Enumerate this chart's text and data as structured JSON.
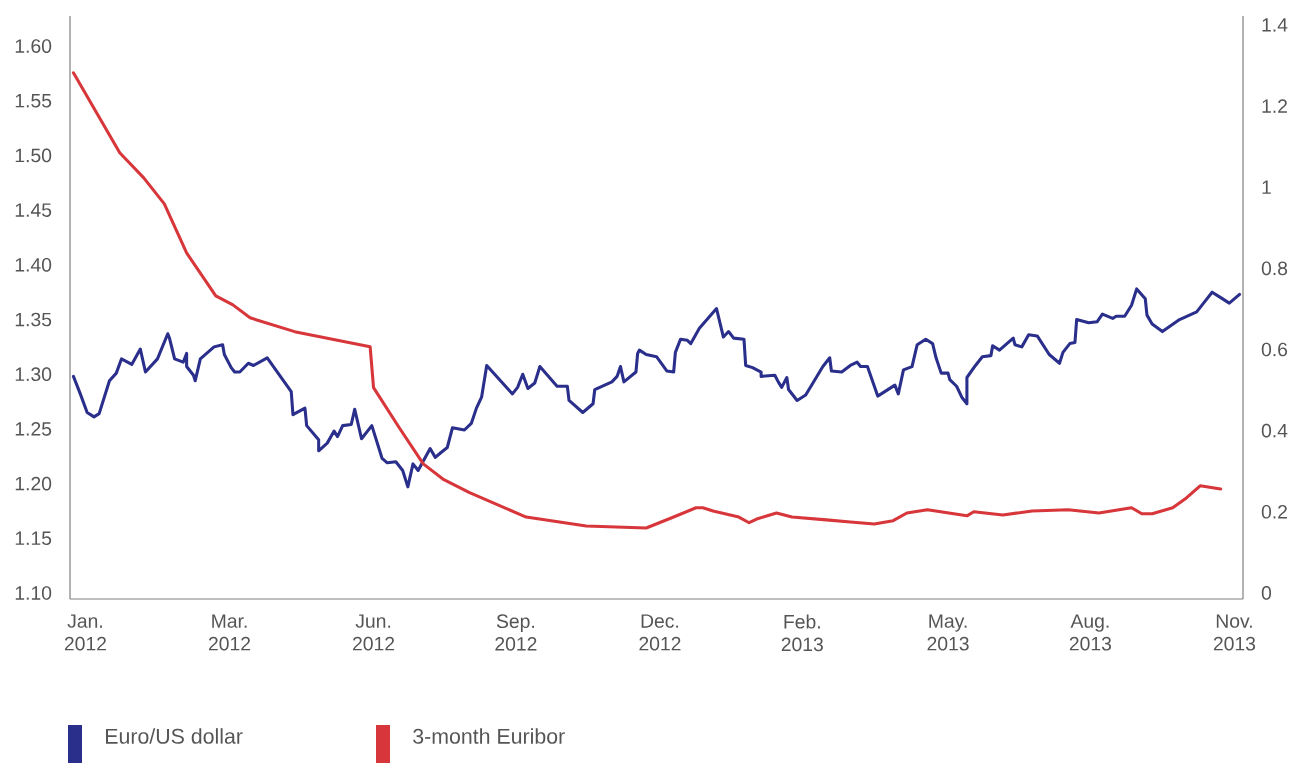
{
  "chart_data": {
    "type": "line",
    "xlim": [
      "2011-12-23",
      "2013-11-06"
    ],
    "xticks": [
      {
        "value": "2012-01-01",
        "label": "Jan. 2012"
      },
      {
        "value": "2012-03-25",
        "label": "Mar. 2012"
      },
      {
        "value": "2012-06-17",
        "label": "Jun. 2012"
      },
      {
        "value": "2012-09-08",
        "label": "Sep. 2012"
      },
      {
        "value": "2012-12-01",
        "label": "Dec. 2012"
      },
      {
        "value": "2013-02-22",
        "label": "Feb. 2013"
      },
      {
        "value": "2013-05-18",
        "label": "May. 2013"
      },
      {
        "value": "2013-08-09",
        "label": "Aug. 2013"
      },
      {
        "value": "2013-11-01",
        "label": "Nov. 2013"
      }
    ],
    "ylim": [
      1.0945,
      1.6275
    ],
    "yticks": [
      {
        "value": 1.1,
        "label": "1.10"
      },
      {
        "value": 1.15,
        "label": "1.15"
      },
      {
        "value": 1.2,
        "label": "1.20"
      },
      {
        "value": 1.25,
        "label": "1.25"
      },
      {
        "value": 1.3,
        "label": "1.30"
      },
      {
        "value": 1.35,
        "label": "1.35"
      },
      {
        "value": 1.4,
        "label": "1.40"
      },
      {
        "value": 1.45,
        "label": "1.45"
      },
      {
        "value": 1.5,
        "label": "1.50"
      },
      {
        "value": 1.55,
        "label": "1.55"
      },
      {
        "value": 1.6,
        "label": "1.60"
      }
    ],
    "y2lim": [
      -0.015,
      1.422
    ],
    "y2ticks": [
      0,
      0.2,
      0.4,
      0.6,
      0.8,
      1,
      1.2,
      1.4
    ],
    "legend": "bottom",
    "series": [
      {
        "name": "Euro/US dollar",
        "color": "#2b2f8c",
        "x": [
          "2011-12-25",
          "2011-12-29",
          "2012-01-02",
          "2012-01-06",
          "2012-01-09",
          "2012-01-15",
          "2012-01-19",
          "2012-01-22",
          "2012-01-28",
          "2012-02-02",
          "2012-02-05",
          "2012-02-12",
          "2012-02-18",
          "2012-02-19",
          "2012-02-22",
          "2012-02-27",
          "2012-02-29",
          "2012-02-29",
          "2012-03-04",
          "2012-03-05",
          "2012-03-08",
          "2012-03-16",
          "2012-03-21",
          "2012-03-22",
          "2012-03-26",
          "2012-03-28",
          "2012-03-31",
          "2012-04-05",
          "2012-04-08",
          "2012-04-16",
          "2012-04-30",
          "2012-05-01",
          "2012-05-08",
          "2012-05-09",
          "2012-05-16",
          "2012-05-16",
          "2012-05-21",
          "2012-05-25",
          "2012-05-27",
          "2012-05-30",
          "2012-06-04",
          "2012-06-06",
          "2012-06-10",
          "2012-06-16",
          "2012-06-22",
          "2012-06-25",
          "2012-06-30",
          "2012-07-04",
          "2012-07-07",
          "2012-07-10",
          "2012-07-13",
          "2012-07-20",
          "2012-07-23",
          "2012-07-26",
          "2012-07-30",
          "2012-08-02",
          "2012-08-09",
          "2012-08-13",
          "2012-08-16",
          "2012-08-19",
          "2012-08-22",
          "2012-09-06",
          "2012-09-09",
          "2012-09-12",
          "2012-09-15",
          "2012-09-19",
          "2012-09-22",
          "2012-10-02",
          "2012-10-08",
          "2012-10-09",
          "2012-10-17",
          "2012-10-23",
          "2012-10-24",
          "2012-11-03",
          "2012-11-06",
          "2012-11-08",
          "2012-11-10",
          "2012-11-17",
          "2012-11-18",
          "2012-11-19",
          "2012-11-23",
          "2012-11-29",
          "2012-12-05",
          "2012-12-09",
          "2012-12-10",
          "2012-12-13",
          "2012-12-17",
          "2012-12-19",
          "2012-12-24",
          "2013-01-03",
          "2013-01-07",
          "2013-01-10",
          "2013-01-13",
          "2013-01-19",
          "2013-01-20",
          "2013-01-24",
          "2013-01-29",
          "2013-01-29",
          "2013-02-06",
          "2013-02-08",
          "2013-02-10",
          "2013-02-13",
          "2013-02-14",
          "2013-02-19",
          "2013-02-24",
          "2013-03-06",
          "2013-03-10",
          "2013-03-11",
          "2013-03-17",
          "2013-03-22",
          "2013-03-26",
          "2013-03-28",
          "2013-04-01",
          "2013-04-07",
          "2013-04-17",
          "2013-04-19",
          "2013-04-22",
          "2013-04-27",
          "2013-04-30",
          "2013-05-05",
          "2013-05-09",
          "2013-05-11",
          "2013-05-14",
          "2013-05-18",
          "2013-05-19",
          "2013-05-23",
          "2013-05-26",
          "2013-05-29",
          "2013-05-29",
          "2013-06-03",
          "2013-06-07",
          "2013-06-12",
          "2013-06-13",
          "2013-06-17",
          "2013-06-25",
          "2013-06-26",
          "2013-06-30",
          "2013-07-04",
          "2013-07-09",
          "2013-07-16",
          "2013-07-22",
          "2013-07-24",
          "2013-07-28",
          "2013-07-31",
          "2013-08-01",
          "2013-08-08",
          "2013-08-13",
          "2013-08-16",
          "2013-08-22",
          "2013-08-24",
          "2013-08-29",
          "2013-09-02",
          "2013-09-05",
          "2013-09-10",
          "2013-09-11",
          "2013-09-14",
          "2013-09-20",
          "2013-09-30",
          "2013-10-10",
          "2013-10-14",
          "2013-10-19",
          "2013-10-24",
          "2013-10-29",
          "2013-11-04"
        ],
        "values": [
          1.298,
          1.282,
          1.265,
          1.261,
          1.264,
          1.294,
          1.301,
          1.314,
          1.309,
          1.323,
          1.302,
          1.314,
          1.337,
          1.333,
          1.314,
          1.311,
          1.319,
          1.307,
          1.299,
          1.294,
          1.314,
          1.325,
          1.327,
          1.318,
          1.306,
          1.302,
          1.302,
          1.31,
          1.308,
          1.315,
          1.284,
          1.263,
          1.269,
          1.253,
          1.24,
          1.23,
          1.237,
          1.248,
          1.243,
          1.253,
          1.254,
          1.268,
          1.241,
          1.253,
          1.223,
          1.219,
          1.22,
          1.212,
          1.197,
          1.218,
          1.212,
          1.232,
          1.224,
          1.228,
          1.233,
          1.251,
          1.249,
          1.255,
          1.269,
          1.279,
          1.308,
          1.282,
          1.288,
          1.3,
          1.287,
          1.292,
          1.307,
          1.289,
          1.289,
          1.276,
          1.265,
          1.273,
          1.286,
          1.293,
          1.298,
          1.307,
          1.293,
          1.302,
          1.319,
          1.322,
          1.318,
          1.316,
          1.303,
          1.302,
          1.32,
          1.332,
          1.331,
          1.328,
          1.342,
          1.36,
          1.334,
          1.339,
          1.333,
          1.332,
          1.308,
          1.306,
          1.302,
          1.298,
          1.299,
          1.293,
          1.288,
          1.297,
          1.286,
          1.276,
          1.281,
          1.307,
          1.315,
          1.303,
          1.302,
          1.308,
          1.311,
          1.307,
          1.307,
          1.28,
          1.29,
          1.282,
          1.304,
          1.307,
          1.327,
          1.332,
          1.328,
          1.315,
          1.301,
          1.301,
          1.295,
          1.289,
          1.279,
          1.273,
          1.297,
          1.308,
          1.316,
          1.317,
          1.326,
          1.322,
          1.333,
          1.327,
          1.325,
          1.336,
          1.335,
          1.318,
          1.31,
          1.32,
          1.328,
          1.329,
          1.35,
          1.347,
          1.348,
          1.355,
          1.351,
          1.353,
          1.353,
          1.363,
          1.378,
          1.369,
          1.354,
          1.346,
          1.339,
          1.35,
          1.357,
          1.365,
          1.375,
          1.37,
          1.365,
          1.373
        ]
      },
      {
        "name": "3-month Euribor",
        "color": "#d7363a",
        "axis": "y2",
        "x": [
          "2011-12-25",
          "2012-01-21",
          "2012-02-04",
          "2012-02-16",
          "2012-02-29",
          "2012-03-17",
          "2012-03-27",
          "2012-04-06",
          "2012-05-02",
          "2012-06-15",
          "2012-06-17",
          "2012-07-02",
          "2012-07-16",
          "2012-07-28",
          "2012-08-12",
          "2012-09-14",
          "2012-10-19",
          "2012-11-23",
          "2012-12-09",
          "2012-12-22",
          "2012-12-26",
          "2013-01-01",
          "2013-01-16",
          "2013-01-22",
          "2013-01-27",
          "2013-02-07",
          "2013-02-16",
          "2013-03-08",
          "2013-03-22",
          "2013-04-05",
          "2013-04-16",
          "2013-04-24",
          "2013-05-06",
          "2013-05-29",
          "2013-06-02",
          "2013-06-19",
          "2013-07-06",
          "2013-07-27",
          "2013-08-14",
          "2013-09-02",
          "2013-09-08",
          "2013-09-14",
          "2013-09-26",
          "2013-10-04",
          "2013-10-12",
          "2013-10-24"
        ],
        "values": [
          1.282,
          1.085,
          1.023,
          0.959,
          0.838,
          0.732,
          0.71,
          0.678,
          0.644,
          0.607,
          0.506,
          0.407,
          0.318,
          0.279,
          0.247,
          0.187,
          0.165,
          0.16,
          0.187,
          0.21,
          0.21,
          0.202,
          0.187,
          0.173,
          0.183,
          0.197,
          0.187,
          0.18,
          0.175,
          0.17,
          0.178,
          0.197,
          0.205,
          0.19,
          0.2,
          0.192,
          0.202,
          0.205,
          0.197,
          0.21,
          0.195,
          0.195,
          0.21,
          0.234,
          0.264,
          0.256
        ]
      }
    ]
  }
}
